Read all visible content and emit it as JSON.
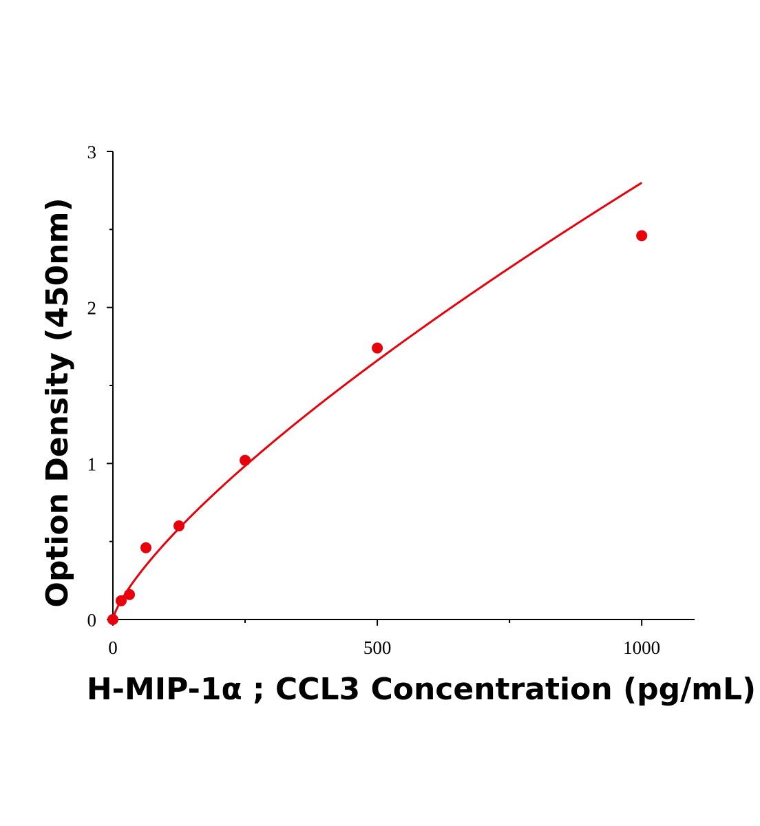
{
  "chart_data": {
    "type": "scatter",
    "title": "",
    "xlabel": "H-MIP-1α ; CCL3 Concentration (pg/mL)",
    "ylabel": "Option Density (450nm)",
    "xlim": [
      0,
      1100
    ],
    "ylim": [
      0,
      3
    ],
    "x_ticks": [
      0,
      500,
      1000
    ],
    "x_tick_labels": [
      "0",
      "500",
      "1000"
    ],
    "x_minor_ticks": [
      250,
      750
    ],
    "y_ticks": [
      0,
      1,
      2,
      3
    ],
    "y_tick_labels": [
      "0",
      "1",
      "2",
      "3"
    ],
    "y_minor_ticks": [
      0.5,
      1.5,
      2.5
    ],
    "grid": false,
    "legend": "none",
    "series": [
      {
        "points": [
          {
            "x": 0,
            "y": 0.0
          },
          {
            "x": 15.6,
            "y": 0.12
          },
          {
            "x": 31.3,
            "y": 0.16
          },
          {
            "x": 62.5,
            "y": 0.46
          },
          {
            "x": 125,
            "y": 0.6
          },
          {
            "x": 250,
            "y": 1.02
          },
          {
            "x": 500,
            "y": 1.74
          },
          {
            "x": 1000,
            "y": 2.46
          }
        ],
        "fit": "curve",
        "color": "#e8000b"
      }
    ]
  }
}
